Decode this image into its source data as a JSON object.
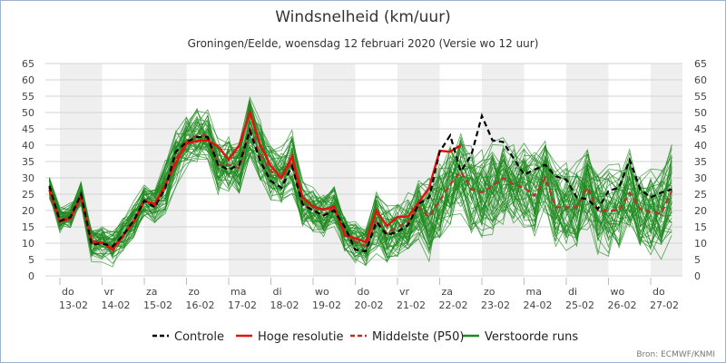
{
  "chart_data": {
    "type": "line",
    "title": "Windsnelheid (km/uur)",
    "subtitle": "Groningen/Eelde, woensdag 12 februari 2020 (Versie wo 12 uur)",
    "source": "Bron: ECMWF/KNMI",
    "ylim": [
      0,
      65
    ],
    "yticks": [
      0,
      5,
      10,
      15,
      20,
      25,
      30,
      35,
      40,
      45,
      50,
      55,
      60,
      65
    ],
    "grid": true,
    "time_step_hours": 6,
    "start": "12-02 18:00",
    "days": [
      {
        "dow": "do",
        "date": "13-02"
      },
      {
        "dow": "vr",
        "date": "14-02"
      },
      {
        "dow": "za",
        "date": "15-02"
      },
      {
        "dow": "zo",
        "date": "16-02"
      },
      {
        "dow": "ma",
        "date": "17-02"
      },
      {
        "dow": "di",
        "date": "18-02"
      },
      {
        "dow": "wo",
        "date": "19-02"
      },
      {
        "dow": "do",
        "date": "20-02"
      },
      {
        "dow": "vr",
        "date": "21-02"
      },
      {
        "dow": "za",
        "date": "22-02"
      },
      {
        "dow": "zo",
        "date": "23-02"
      },
      {
        "dow": "ma",
        "date": "24-02"
      },
      {
        "dow": "di",
        "date": "25-02"
      },
      {
        "dow": "wo",
        "date": "26-02"
      },
      {
        "dow": "do",
        "date": "27-02"
      }
    ],
    "legend_position": "bottom",
    "series": [
      {
        "name": "Controle",
        "color": "#000000",
        "dash": true,
        "values": [
          27.5,
          16.8,
          18,
          25,
          9.5,
          10,
          9,
          12.5,
          17,
          23,
          21,
          27,
          38,
          41,
          42.5,
          42.5,
          34,
          32.5,
          34,
          44.5,
          35,
          29,
          27,
          33.5,
          22,
          20,
          18.5,
          20,
          15,
          8,
          7.5,
          16.5,
          12.5,
          13.5,
          15.5,
          22,
          24,
          38,
          43,
          32,
          37,
          49,
          41.5,
          41,
          36,
          31,
          32.5,
          34,
          30.5,
          29.5,
          24,
          23.5,
          20.5,
          26,
          27,
          35.5,
          26.5,
          24,
          25.5,
          26.5
        ]
      },
      {
        "name": "Hoge resolutie",
        "color": "#e2130f",
        "dash": false,
        "values": [
          26.3,
          16.6,
          17.5,
          24.4,
          10.6,
          10.1,
          8,
          12.4,
          16.6,
          23,
          22,
          28,
          34.6,
          40.5,
          41.3,
          41.5,
          39.6,
          35.5,
          40,
          50,
          40,
          33.6,
          30,
          36.6,
          24,
          21.2,
          20.3,
          21.2,
          12.4,
          11.5,
          10.4,
          20,
          15.3,
          18,
          18.2,
          22.4,
          27,
          38.3,
          38,
          40
        ]
      },
      {
        "name": "Middelste (P50)",
        "color": "#b5352a",
        "dash": true,
        "values": [
          27,
          17,
          18,
          25,
          10,
          10,
          8.5,
          12.5,
          17,
          23,
          21.5,
          27.5,
          36,
          41,
          43,
          43,
          34,
          34,
          33,
          45,
          37,
          32,
          30,
          35,
          22,
          20,
          18.5,
          21,
          13,
          10.5,
          9,
          17,
          13,
          15,
          16.5,
          21,
          18,
          23,
          28,
          32,
          26.5,
          25.5,
          27.5,
          30,
          28,
          27,
          24.5,
          30,
          21,
          21,
          21,
          27,
          20,
          20,
          20,
          25.5,
          20.5,
          19.5,
          19,
          26
        ]
      },
      {
        "name": "Verstoorde runs",
        "color": "#1e8a1e",
        "dash": false,
        "members": 50,
        "spread": [
          3,
          3,
          3,
          3,
          4,
          4,
          4,
          4,
          4,
          4,
          4,
          6,
          6,
          6,
          6,
          6,
          7,
          7,
          7,
          7,
          7,
          7,
          7,
          7,
          5,
          5,
          5,
          5,
          5,
          5,
          5,
          7,
          7,
          7,
          7,
          7,
          9,
          10,
          10,
          10,
          10,
          10,
          10,
          10,
          10,
          10,
          10,
          10,
          10,
          10,
          10,
          10,
          10,
          10,
          10,
          10,
          10,
          10,
          10,
          10
        ]
      }
    ]
  }
}
